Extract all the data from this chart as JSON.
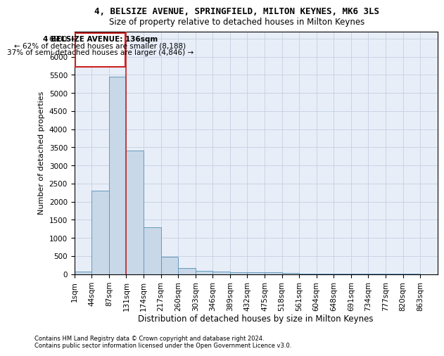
{
  "title": "4, BELSIZE AVENUE, SPRINGFIELD, MILTON KEYNES, MK6 3LS",
  "subtitle": "Size of property relative to detached houses in Milton Keynes",
  "xlabel": "Distribution of detached houses by size in Milton Keynes",
  "ylabel": "Number of detached properties",
  "footnote1": "Contains HM Land Registry data © Crown copyright and database right 2024.",
  "footnote2": "Contains public sector information licensed under the Open Government Licence v3.0.",
  "bin_labels": [
    "1sqm",
    "44sqm",
    "87sqm",
    "131sqm",
    "174sqm",
    "217sqm",
    "260sqm",
    "303sqm",
    "346sqm",
    "389sqm",
    "432sqm",
    "475sqm",
    "518sqm",
    "561sqm",
    "604sqm",
    "648sqm",
    "691sqm",
    "734sqm",
    "777sqm",
    "820sqm",
    "863sqm"
  ],
  "bar_values": [
    75,
    2300,
    5450,
    3400,
    1300,
    475,
    170,
    90,
    70,
    50,
    50,
    50,
    20,
    10,
    5,
    3,
    2,
    1,
    1,
    1,
    0
  ],
  "bar_color": "#c8d8e8",
  "bar_edge_color": "#6699bb",
  "annotation_text_line1": "4 BELSIZE AVENUE: 136sqm",
  "annotation_text_line2": "← 62% of detached houses are smaller (8,188)",
  "annotation_text_line3": "37% of semi-detached houses are larger (4,846) →",
  "annotation_box_edgecolor": "#cc2222",
  "property_line_color": "#cc2222",
  "property_bin_index": 3,
  "ylim": [
    0,
    6700
  ],
  "yticks": [
    0,
    500,
    1000,
    1500,
    2000,
    2500,
    3000,
    3500,
    4000,
    4500,
    5000,
    5500,
    6000,
    6500
  ],
  "grid_color": "#c8d4e4",
  "bg_color": "#e8eef8",
  "title_fontsize": 9,
  "subtitle_fontsize": 8.5,
  "ylabel_fontsize": 8,
  "xlabel_fontsize": 8.5,
  "tick_fontsize": 7.5
}
